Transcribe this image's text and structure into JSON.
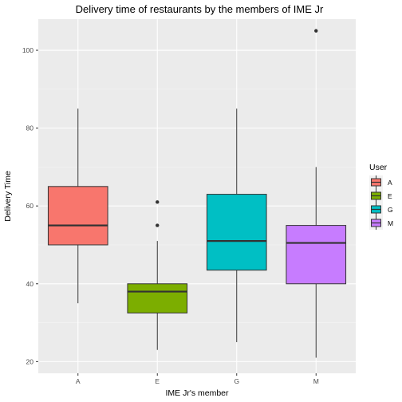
{
  "chart_data": {
    "type": "boxplot",
    "title": "Delivery time of restaurants by the members of IME Jr",
    "xlabel": "IME Jr's member",
    "ylabel": "Delivery Time",
    "ylim": [
      17,
      108
    ],
    "y_ticks": [
      20,
      40,
      60,
      80,
      100
    ],
    "categories": [
      "A",
      "E",
      "G",
      "M"
    ],
    "grid": true,
    "legend": {
      "title": "User",
      "position": "right",
      "entries": [
        "A",
        "E",
        "G",
        "M"
      ]
    },
    "series": [
      {
        "category": "A",
        "whisker_low": 35,
        "q1": 50,
        "median": 55,
        "q3": 65,
        "whisker_high": 85,
        "outliers": [],
        "color": "#F8766D"
      },
      {
        "category": "E",
        "whisker_low": 23,
        "q1": 32.5,
        "median": 38,
        "q3": 40,
        "whisker_high": 51,
        "outliers": [
          55,
          61
        ],
        "color": "#7CAE00"
      },
      {
        "category": "G",
        "whisker_low": 25,
        "q1": 43.5,
        "median": 51,
        "q3": 63,
        "whisker_high": 85,
        "outliers": [],
        "color": "#00BFC4"
      },
      {
        "category": "M",
        "whisker_low": 21,
        "q1": 40,
        "median": 50.5,
        "q3": 55,
        "whisker_high": 70,
        "outliers": [
          105
        ],
        "color": "#C77CFF"
      }
    ]
  }
}
